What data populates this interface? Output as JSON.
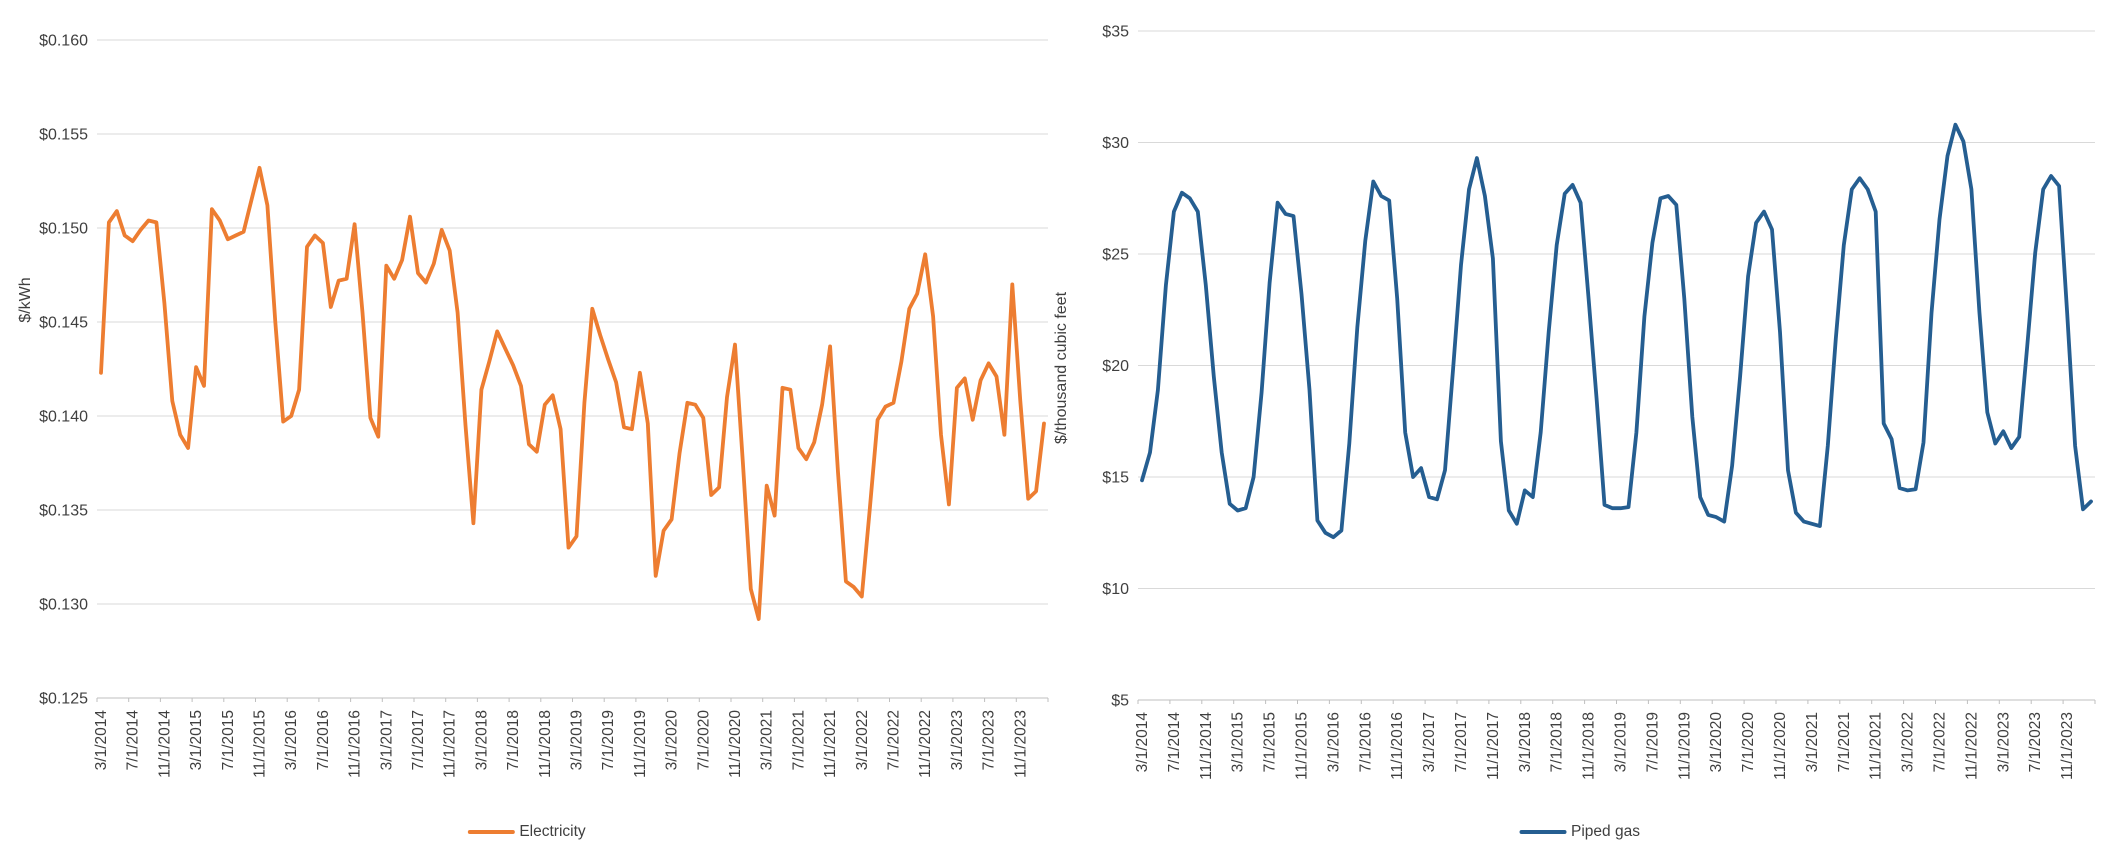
{
  "page": {
    "background": "#FFFFFF"
  },
  "styles": {
    "text_color": "#3F3F3F",
    "grid_color": "#D9D9D9",
    "axis_color": "#BFBFBF",
    "electricity_color": "#ED7D31",
    "piped_gas_color": "#255E91"
  },
  "chart_data": [
    {
      "id": "electricity",
      "type": "line",
      "title": "",
      "xlabel": "",
      "ylabel": "$/kWh",
      "legend": {
        "label": "Electricity",
        "position": "bottom-center"
      },
      "color": "#ED7D31",
      "grid": true,
      "y_axis": {
        "min": 0.125,
        "max": 0.16,
        "step": 0.005,
        "tick_labels": [
          "$0.125",
          "$0.130",
          "$0.135",
          "$0.140",
          "$0.145",
          "$0.150",
          "$0.155",
          "$0.160"
        ]
      },
      "x_axis": {
        "tick_every": 4,
        "last_tick_label": "11/1/2023",
        "tick_labels": [
          "3/1/2014",
          "7/1/2014",
          "11/1/2014",
          "3/1/2015",
          "7/1/2015",
          "11/1/2015",
          "3/1/2016",
          "7/1/2016",
          "11/1/2016",
          "3/1/2017",
          "7/1/2017",
          "11/1/2017",
          "3/1/2018",
          "7/1/2018",
          "11/1/2018",
          "3/1/2019",
          "7/1/2019",
          "11/1/2019",
          "3/1/2020",
          "7/1/2020",
          "11/1/2020",
          "3/1/2021",
          "7/1/2021",
          "11/1/2021",
          "3/1/2022",
          "7/1/2022",
          "11/1/2022",
          "3/1/2023",
          "7/1/2023",
          "11/1/2023"
        ]
      },
      "x": [
        "3/1/2014",
        "4/1/2014",
        "5/1/2014",
        "6/1/2014",
        "7/1/2014",
        "8/1/2014",
        "9/1/2014",
        "10/1/2014",
        "11/1/2014",
        "12/1/2014",
        "1/1/2015",
        "2/1/2015",
        "3/1/2015",
        "4/1/2015",
        "5/1/2015",
        "6/1/2015",
        "7/1/2015",
        "8/1/2015",
        "9/1/2015",
        "10/1/2015",
        "11/1/2015",
        "12/1/2015",
        "1/1/2016",
        "2/1/2016",
        "3/1/2016",
        "4/1/2016",
        "5/1/2016",
        "6/1/2016",
        "7/1/2016",
        "8/1/2016",
        "9/1/2016",
        "10/1/2016",
        "11/1/2016",
        "12/1/2016",
        "1/1/2017",
        "2/1/2017",
        "3/1/2017",
        "4/1/2017",
        "5/1/2017",
        "6/1/2017",
        "7/1/2017",
        "8/1/2017",
        "9/1/2017",
        "10/1/2017",
        "11/1/2017",
        "12/1/2017",
        "1/1/2018",
        "2/1/2018",
        "3/1/2018",
        "4/1/2018",
        "5/1/2018",
        "6/1/2018",
        "7/1/2018",
        "8/1/2018",
        "9/1/2018",
        "10/1/2018",
        "11/1/2018",
        "12/1/2018",
        "1/1/2019",
        "2/1/2019",
        "3/1/2019",
        "4/1/2019",
        "5/1/2019",
        "6/1/2019",
        "7/1/2019",
        "8/1/2019",
        "9/1/2019",
        "10/1/2019",
        "11/1/2019",
        "12/1/2019",
        "1/1/2020",
        "2/1/2020",
        "3/1/2020",
        "4/1/2020",
        "5/1/2020",
        "6/1/2020",
        "7/1/2020",
        "8/1/2020",
        "9/1/2020",
        "10/1/2020",
        "11/1/2020",
        "12/1/2020",
        "1/1/2021",
        "2/1/2021",
        "3/1/2021",
        "4/1/2021",
        "5/1/2021",
        "6/1/2021",
        "7/1/2021",
        "8/1/2021",
        "9/1/2021",
        "10/1/2021",
        "11/1/2021",
        "12/1/2021",
        "1/1/2022",
        "2/1/2022",
        "3/1/2022",
        "4/1/2022",
        "5/1/2022",
        "6/1/2022",
        "7/1/2022",
        "8/1/2022",
        "9/1/2022",
        "10/1/2022",
        "11/1/2022",
        "12/1/2022",
        "1/1/2023",
        "2/1/2023",
        "3/1/2023",
        "4/1/2023",
        "5/1/2023",
        "6/1/2023",
        "7/1/2023",
        "8/1/2023",
        "9/1/2023",
        "10/1/2023",
        "11/1/2023",
        "12/1/2023",
        "1/1/2024",
        "2/1/2024"
      ],
      "values": [
        0.1423,
        0.1503,
        0.1509,
        0.1496,
        0.1493,
        0.1499,
        0.1504,
        0.1503,
        0.146,
        0.1408,
        0.139,
        0.1383,
        0.1426,
        0.1416,
        0.151,
        0.1504,
        0.1494,
        0.1496,
        0.1498,
        0.1515,
        0.1532,
        0.1512,
        0.145,
        0.1397,
        0.14,
        0.1414,
        0.149,
        0.1496,
        0.1492,
        0.1458,
        0.1472,
        0.1473,
        0.1502,
        0.1455,
        0.1399,
        0.1389,
        0.148,
        0.1473,
        0.1483,
        0.1506,
        0.1476,
        0.1471,
        0.1481,
        0.1499,
        0.1488,
        0.1455,
        0.1395,
        0.1343,
        0.1414,
        0.1429,
        0.1445,
        0.1436,
        0.1427,
        0.1416,
        0.1385,
        0.1381,
        0.1406,
        0.1411,
        0.1393,
        0.133,
        0.1336,
        0.1407,
        0.1457,
        0.1443,
        0.143,
        0.1418,
        0.1394,
        0.1393,
        0.1423,
        0.1396,
        0.1315,
        0.1339,
        0.1345,
        0.138,
        0.1407,
        0.1406,
        0.1399,
        0.1358,
        0.1362,
        0.141,
        0.1438,
        0.1375,
        0.1308,
        0.1292,
        0.1363,
        0.1347,
        0.1415,
        0.1414,
        0.1383,
        0.1377,
        0.1386,
        0.1406,
        0.1437,
        0.137,
        0.1312,
        0.1309,
        0.1304,
        0.135,
        0.1398,
        0.1405,
        0.1407,
        0.1429,
        0.1457,
        0.1465,
        0.1486,
        0.1453,
        0.139,
        0.1353,
        0.1415,
        0.142,
        0.1398,
        0.1419,
        0.1428,
        0.1421,
        0.139,
        0.147,
        0.1408,
        0.1356,
        0.136,
        0.1396
      ]
    },
    {
      "id": "piped-gas",
      "type": "line",
      "title": "",
      "xlabel": "",
      "ylabel": "$/thousand cubic feet",
      "legend": {
        "label": "Piped gas",
        "position": "bottom-center"
      },
      "color": "#255E91",
      "grid": true,
      "y_axis": {
        "min": 5,
        "max": 35,
        "step": 5,
        "tick_labels": [
          "$5",
          "$10",
          "$15",
          "$20",
          "$25",
          "$30",
          "$35"
        ]
      },
      "x_axis": {
        "tick_every": 4,
        "last_tick_label": "11/1/2023",
        "tick_labels": [
          "3/1/2014",
          "7/1/2014",
          "11/1/2014",
          "3/1/2015",
          "7/1/2015",
          "11/1/2015",
          "3/1/2016",
          "7/1/2016",
          "11/1/2016",
          "3/1/2017",
          "7/1/2017",
          "11/1/2017",
          "3/1/2018",
          "7/1/2018",
          "11/1/2018",
          "3/1/2019",
          "7/1/2019",
          "11/1/2019",
          "3/1/2020",
          "7/1/2020",
          "11/1/2020",
          "3/1/2021",
          "7/1/2021",
          "11/1/2021",
          "3/1/2022",
          "7/1/2022",
          "11/1/2022",
          "3/1/2023",
          "7/1/2023",
          "11/1/2023"
        ]
      },
      "x": [
        "3/1/2014",
        "4/1/2014",
        "5/1/2014",
        "6/1/2014",
        "7/1/2014",
        "8/1/2014",
        "9/1/2014",
        "10/1/2014",
        "11/1/2014",
        "12/1/2014",
        "1/1/2015",
        "2/1/2015",
        "3/1/2015",
        "4/1/2015",
        "5/1/2015",
        "6/1/2015",
        "7/1/2015",
        "8/1/2015",
        "9/1/2015",
        "10/1/2015",
        "11/1/2015",
        "12/1/2015",
        "1/1/2016",
        "2/1/2016",
        "3/1/2016",
        "4/1/2016",
        "5/1/2016",
        "6/1/2016",
        "7/1/2016",
        "8/1/2016",
        "9/1/2016",
        "10/1/2016",
        "11/1/2016",
        "12/1/2016",
        "1/1/2017",
        "2/1/2017",
        "3/1/2017",
        "4/1/2017",
        "5/1/2017",
        "6/1/2017",
        "7/1/2017",
        "8/1/2017",
        "9/1/2017",
        "10/1/2017",
        "11/1/2017",
        "12/1/2017",
        "1/1/2018",
        "2/1/2018",
        "3/1/2018",
        "4/1/2018",
        "5/1/2018",
        "6/1/2018",
        "7/1/2018",
        "8/1/2018",
        "9/1/2018",
        "10/1/2018",
        "11/1/2018",
        "12/1/2018",
        "1/1/2019",
        "2/1/2019",
        "3/1/2019",
        "4/1/2019",
        "5/1/2019",
        "6/1/2019",
        "7/1/2019",
        "8/1/2019",
        "9/1/2019",
        "10/1/2019",
        "11/1/2019",
        "12/1/2019",
        "1/1/2020",
        "2/1/2020",
        "3/1/2020",
        "4/1/2020",
        "5/1/2020",
        "6/1/2020",
        "7/1/2020",
        "8/1/2020",
        "9/1/2020",
        "10/1/2020",
        "11/1/2020",
        "12/1/2020",
        "1/1/2021",
        "2/1/2021",
        "3/1/2021",
        "4/1/2021",
        "5/1/2021",
        "6/1/2021",
        "7/1/2021",
        "8/1/2021",
        "9/1/2021",
        "10/1/2021",
        "11/1/2021",
        "12/1/2021",
        "1/1/2022",
        "2/1/2022",
        "3/1/2022",
        "4/1/2022",
        "5/1/2022",
        "6/1/2022",
        "7/1/2022",
        "8/1/2022",
        "9/1/2022",
        "10/1/2022",
        "11/1/2022",
        "12/1/2022",
        "1/1/2023",
        "2/1/2023",
        "3/1/2023",
        "4/1/2023",
        "5/1/2023",
        "6/1/2023",
        "7/1/2023",
        "8/1/2023",
        "9/1/2023",
        "10/1/2023",
        "11/1/2023",
        "12/1/2023",
        "1/1/2024",
        "2/1/2024"
      ],
      "values": [
        14.85,
        16.1,
        18.9,
        23.6,
        26.9,
        27.75,
        27.5,
        26.9,
        23.6,
        19.5,
        16.1,
        13.8,
        13.5,
        13.6,
        15.0,
        18.8,
        23.7,
        27.3,
        26.8,
        26.7,
        23.2,
        18.9,
        13.05,
        12.5,
        12.3,
        12.6,
        16.5,
        21.7,
        25.6,
        28.25,
        27.6,
        27.4,
        23.0,
        17.0,
        15.0,
        15.4,
        14.1,
        14.0,
        15.3,
        19.8,
        24.5,
        27.9,
        29.3,
        27.6,
        24.8,
        16.6,
        13.5,
        12.9,
        14.4,
        14.1,
        17.0,
        21.5,
        25.4,
        27.7,
        28.1,
        27.3,
        23.0,
        18.5,
        13.75,
        13.6,
        13.6,
        13.65,
        17.0,
        22.2,
        25.5,
        27.5,
        27.6,
        27.2,
        23.0,
        17.7,
        14.1,
        13.3,
        13.2,
        13.0,
        15.5,
        19.5,
        24.0,
        26.4,
        26.9,
        26.1,
        21.5,
        15.3,
        13.4,
        13.0,
        12.9,
        12.8,
        16.4,
        21.2,
        25.4,
        27.9,
        28.4,
        27.9,
        26.9,
        17.4,
        16.7,
        14.5,
        14.4,
        14.45,
        16.55,
        22.35,
        26.55,
        29.4,
        30.8,
        30.05,
        27.9,
        22.4,
        17.9,
        16.5,
        17.05,
        16.3,
        16.8,
        20.85,
        25.05,
        27.9,
        28.5,
        28.05,
        22.4,
        16.4,
        13.55,
        13.9
      ]
    }
  ]
}
